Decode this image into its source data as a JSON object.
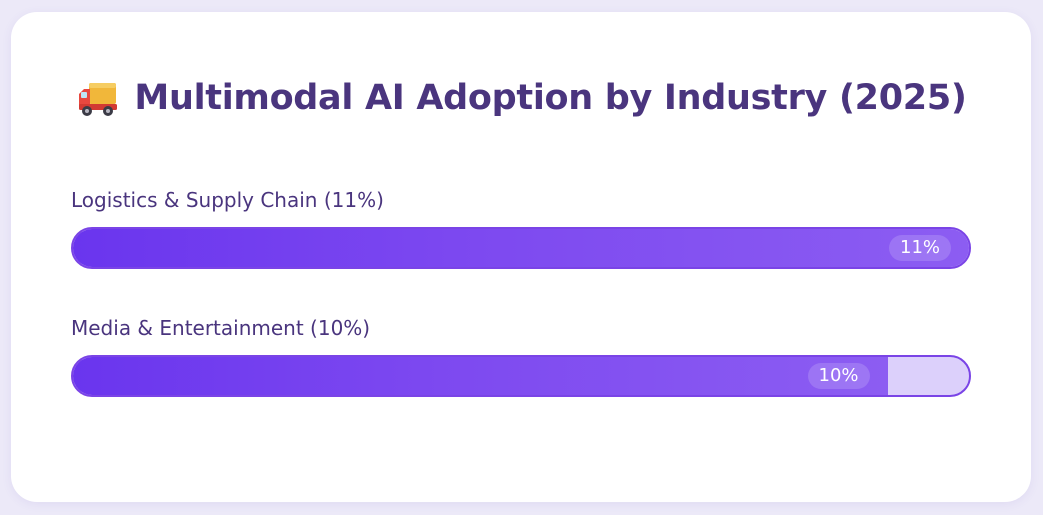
{
  "chart_data": {
    "type": "bar",
    "title": "Multimodal AI Adoption by Industry (2025)",
    "title_icon": "delivery-truck-icon",
    "orientation": "horizontal",
    "scale_max_percent": 11,
    "categories": [
      "Logistics & Supply Chain (11%)",
      "Media & Entertainment (10%)"
    ],
    "values": [
      11,
      10
    ],
    "value_labels": [
      "11%",
      "10%"
    ],
    "colors": {
      "fill_start": "#6a35ee",
      "fill_end": "#8c5df2",
      "track": "#dcd0fb",
      "border": "#7a44e6",
      "text": "#4a357e"
    }
  }
}
